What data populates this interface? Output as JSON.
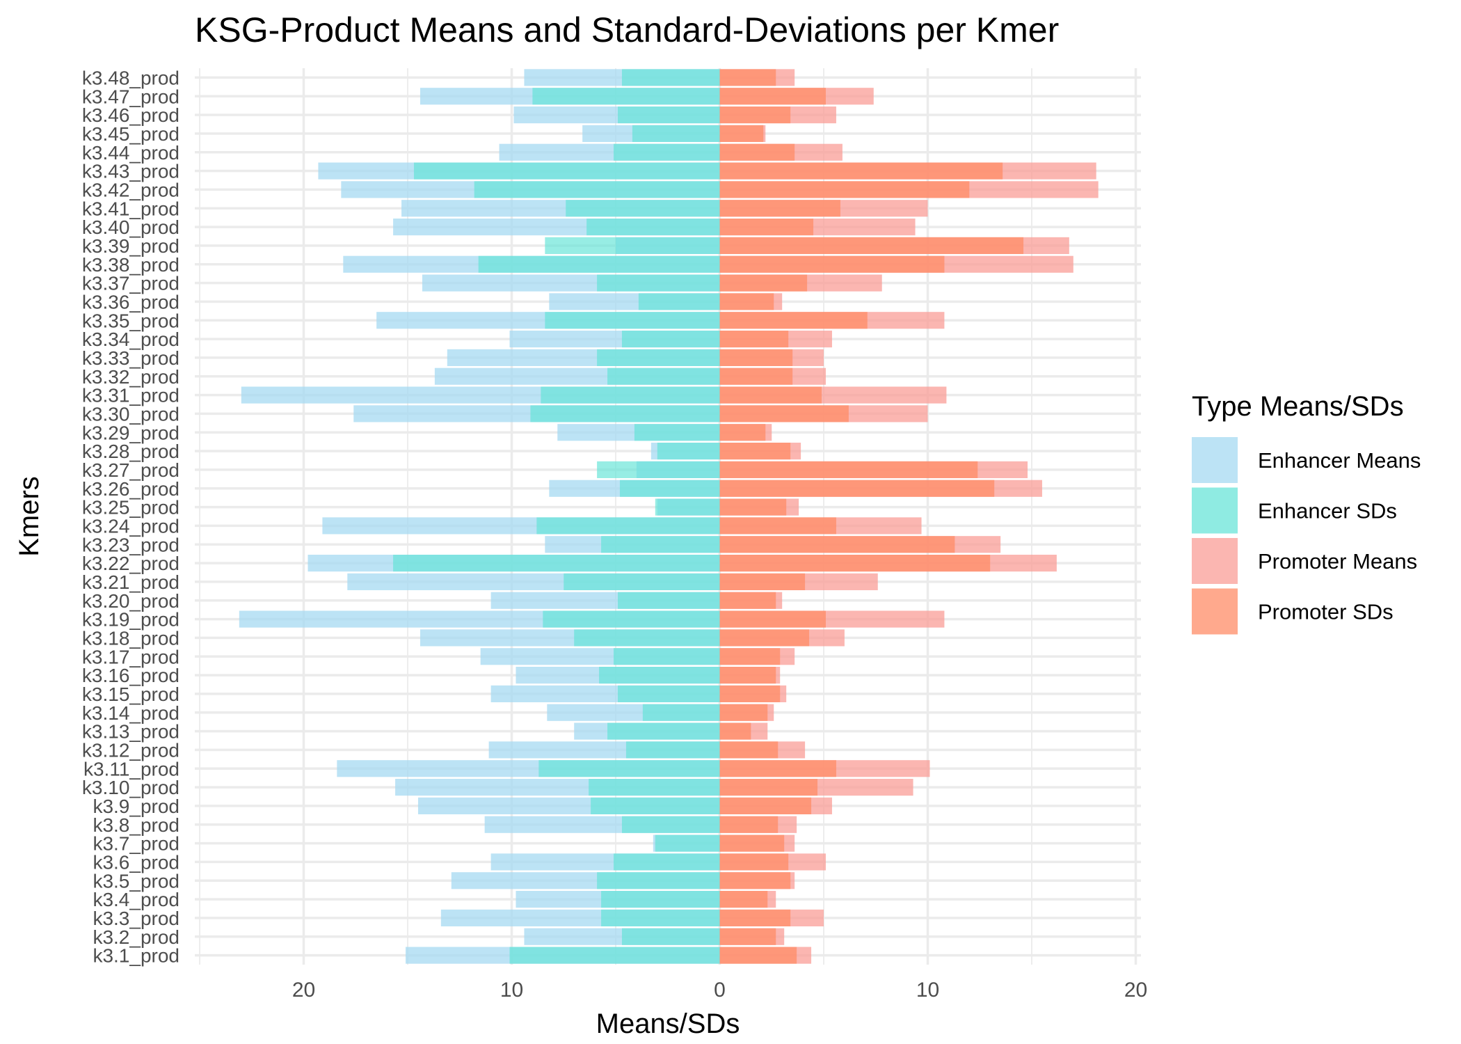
{
  "chart_data": {
    "type": "bar",
    "orientation": "horizontal-diverging",
    "title": "KSG-Product Means and Standard-Deviations per Kmer",
    "xlabel": "Means/SDs",
    "ylabel": "Kmers",
    "xlim": [
      -25,
      20
    ],
    "x_ticks": [
      -20,
      -10,
      0,
      10,
      20
    ],
    "x_tick_labels": [
      "20",
      "10",
      "0",
      "10",
      "20"
    ],
    "grid": true,
    "legend": {
      "title": "Type Means/SDs",
      "position": "right",
      "entries": [
        "Enhancer Means",
        "Enhancer SDs",
        "Promoter Means",
        "Promoter SDs"
      ]
    },
    "colors": {
      "Enhancer Means": "#a6d9f1",
      "Enhancer SDs": "#5fe3d6",
      "Promoter Means": "#fa9e97",
      "Promoter SDs": "#ff8c67",
      "grid": "#ebebeb",
      "tick_text": "#4d4d4d"
    },
    "categories": [
      "k3.1_prod",
      "k3.2_prod",
      "k3.3_prod",
      "k3.4_prod",
      "k3.5_prod",
      "k3.6_prod",
      "k3.7_prod",
      "k3.8_prod",
      "k3.9_prod",
      "k3.10_prod",
      "k3.11_prod",
      "k3.12_prod",
      "k3.13_prod",
      "k3.14_prod",
      "k3.15_prod",
      "k3.16_prod",
      "k3.17_prod",
      "k3.18_prod",
      "k3.19_prod",
      "k3.20_prod",
      "k3.21_prod",
      "k3.22_prod",
      "k3.23_prod",
      "k3.24_prod",
      "k3.25_prod",
      "k3.26_prod",
      "k3.27_prod",
      "k3.28_prod",
      "k3.29_prod",
      "k3.30_prod",
      "k3.31_prod",
      "k3.32_prod",
      "k3.33_prod",
      "k3.34_prod",
      "k3.35_prod",
      "k3.36_prod",
      "k3.37_prod",
      "k3.38_prod",
      "k3.39_prod",
      "k3.40_prod",
      "k3.41_prod",
      "k3.42_prod",
      "k3.43_prod",
      "k3.44_prod",
      "k3.45_prod",
      "k3.46_prod",
      "k3.47_prod",
      "k3.48_prod"
    ],
    "series": [
      {
        "name": "Enhancer Means",
        "side": "left",
        "values": [
          15.1,
          9.4,
          13.4,
          9.8,
          12.9,
          11.0,
          3.2,
          11.3,
          14.5,
          15.6,
          18.4,
          11.1,
          7.0,
          8.3,
          11.0,
          9.8,
          11.5,
          14.4,
          23.1,
          11.0,
          17.9,
          19.8,
          8.4,
          19.1,
          3.0,
          8.2,
          4.0,
          3.3,
          7.8,
          17.6,
          23.0,
          13.7,
          13.1,
          10.1,
          16.5,
          8.2,
          14.3,
          18.1,
          5.0,
          15.7,
          15.3,
          18.2,
          19.3,
          10.6,
          6.6,
          9.9,
          14.4,
          9.4
        ]
      },
      {
        "name": "Enhancer SDs",
        "side": "left",
        "values": [
          10.1,
          4.7,
          5.7,
          5.7,
          5.9,
          5.1,
          3.1,
          4.7,
          6.2,
          6.3,
          8.7,
          4.5,
          5.4,
          3.7,
          4.9,
          5.8,
          5.1,
          7.0,
          8.5,
          4.9,
          7.5,
          15.7,
          5.7,
          8.8,
          3.1,
          4.8,
          5.9,
          3.0,
          4.1,
          9.1,
          8.6,
          5.4,
          5.9,
          4.7,
          8.4,
          3.9,
          5.9,
          11.6,
          8.4,
          6.4,
          7.4,
          11.8,
          14.7,
          5.1,
          4.2,
          4.9,
          9.0,
          4.7
        ]
      },
      {
        "name": "Promoter Means",
        "side": "right",
        "values": [
          4.4,
          3.1,
          5.0,
          2.7,
          3.6,
          5.1,
          3.6,
          3.7,
          5.4,
          9.3,
          10.1,
          4.1,
          2.3,
          2.6,
          3.2,
          2.9,
          3.6,
          6.0,
          10.8,
          3.0,
          7.6,
          16.2,
          13.5,
          9.7,
          3.8,
          15.5,
          14.8,
          3.9,
          2.5,
          10.0,
          10.9,
          5.1,
          5.0,
          5.4,
          10.8,
          3.0,
          7.8,
          17.0,
          16.8,
          9.4,
          10.0,
          18.2,
          18.1,
          5.9,
          2.2,
          5.6,
          7.4,
          3.6
        ]
      },
      {
        "name": "Promoter SDs",
        "side": "right",
        "values": [
          3.7,
          2.7,
          3.4,
          2.3,
          3.4,
          3.3,
          3.1,
          2.8,
          4.4,
          4.7,
          5.6,
          2.8,
          1.5,
          2.3,
          2.9,
          2.7,
          2.9,
          4.3,
          5.1,
          2.7,
          4.1,
          13.0,
          11.3,
          5.6,
          3.2,
          13.2,
          12.4,
          3.4,
          2.2,
          6.2,
          4.9,
          3.5,
          3.5,
          3.3,
          7.1,
          2.6,
          4.2,
          10.8,
          14.6,
          4.5,
          5.8,
          12.0,
          13.6,
          3.6,
          2.1,
          3.4,
          5.1,
          2.7
        ]
      }
    ]
  }
}
